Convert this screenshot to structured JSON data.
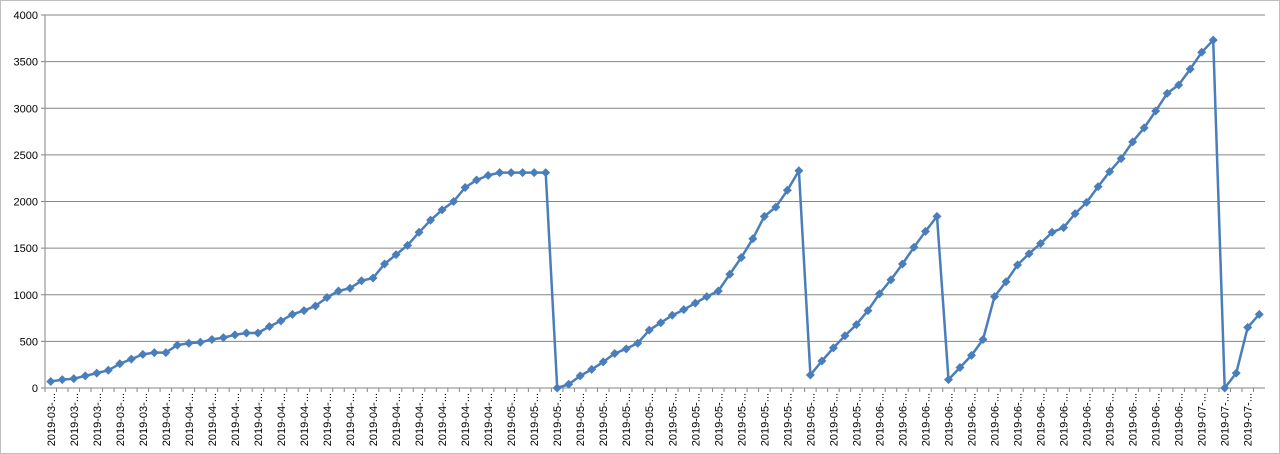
{
  "chart_data": {
    "type": "line",
    "categories": [
      "2019-03-...",
      null,
      "2019-03-...",
      null,
      "2019-03-...",
      null,
      "2019-03-...",
      null,
      "2019-03-...",
      null,
      "2019-04-...",
      null,
      "2019-04-...",
      null,
      "2019-04-...",
      null,
      "2019-04-...",
      null,
      "2019-04-...",
      null,
      "2019-04-...",
      null,
      "2019-04-...",
      null,
      "2019-04-...",
      null,
      "2019-04-...",
      null,
      "2019-04-...",
      null,
      "2019-04-...",
      null,
      "2019-04-...",
      null,
      "2019-04-...",
      null,
      "2019-04-...",
      null,
      "2019-04-...",
      null,
      "2019-05-...",
      null,
      "2019-05-...",
      null,
      "2019-05-...",
      null,
      "2019-05-...",
      null,
      "2019-05-...",
      null,
      "2019-05-...",
      null,
      "2019-05-...",
      null,
      "2019-05-...",
      null,
      "2019-05-...",
      null,
      "2019-05-...",
      null,
      "2019-05-...",
      null,
      "2019-05-...",
      null,
      "2019-05-...",
      null,
      "2019-05-...",
      null,
      "2019-05-...",
      null,
      "2019-05-...",
      null,
      "2019-06-...",
      null,
      "2019-06-...",
      null,
      "2019-06-...",
      null,
      "2019-06-...",
      null,
      "2019-06-...",
      null,
      "2019-06-...",
      null,
      "2019-06-...",
      null,
      "2019-06-...",
      null,
      "2019-06-...",
      null,
      "2019-06-...",
      null,
      "2019-06-...",
      null,
      "2019-06-...",
      null,
      "2019-06-...",
      null,
      "2019-06-...",
      null,
      "2019-07-...",
      null,
      "2019-07-...",
      null,
      "2019-07-...",
      null
    ],
    "values": [
      70,
      90,
      100,
      130,
      160,
      190,
      260,
      310,
      360,
      380,
      380,
      460,
      480,
      490,
      520,
      540,
      570,
      590,
      590,
      660,
      720,
      790,
      830,
      880,
      970,
      1040,
      1070,
      1150,
      1180,
      1330,
      1430,
      1530,
      1670,
      1800,
      1910,
      2000,
      2150,
      2230,
      2280,
      2310,
      2310,
      2310,
      2310,
      2310,
      0,
      40,
      130,
      200,
      280,
      370,
      420,
      480,
      620,
      700,
      780,
      840,
      910,
      980,
      1040,
      1220,
      1400,
      1600,
      1840,
      1940,
      2120,
      2330,
      140,
      290,
      430,
      560,
      680,
      830,
      1010,
      1160,
      1330,
      1510,
      1680,
      1840,
      90,
      220,
      350,
      520,
      980,
      1140,
      1320,
      1440,
      1550,
      1670,
      1720,
      1870,
      1990,
      2160,
      2320,
      2460,
      2640,
      2790,
      2970,
      3160,
      3250,
      3420,
      3600,
      3730,
      0,
      160,
      650,
      790
    ],
    "color": "#4a7ebb",
    "ylim": [
      0,
      4000
    ],
    "yticks": [
      0,
      500,
      1000,
      1500,
      2000,
      2500,
      3000,
      3500,
      4000
    ],
    "grid": true
  }
}
